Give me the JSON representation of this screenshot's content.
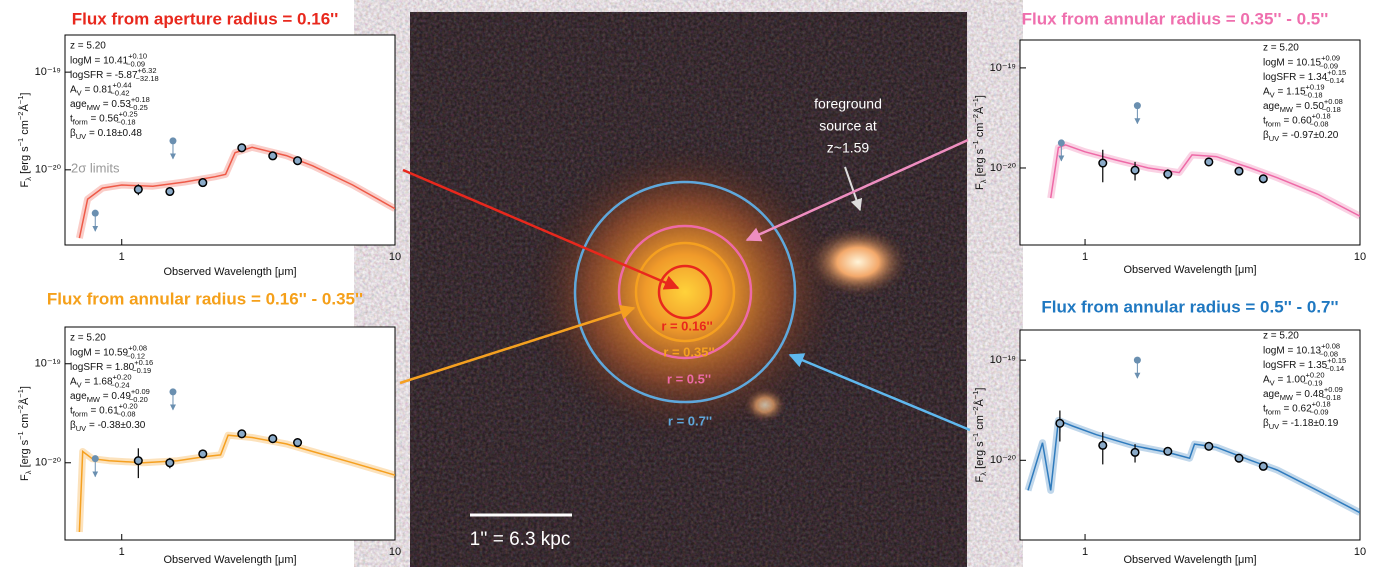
{
  "chart_data": [
    {
      "type": "line",
      "title": "Flux from aperture radius = 0.16''",
      "title_color": "#e8281d",
      "xlabel": "Observed Wavelength [μm]",
      "ylabel": [
        {
          "t": "F"
        },
        {
          "t": "λ",
          "pos": "sub"
        },
        {
          "t": " [erg s"
        },
        {
          "t": "−1",
          "pos": "sup"
        },
        {
          "t": " cm"
        },
        {
          "t": "−2",
          "pos": "sup"
        },
        {
          "t": "Å"
        },
        {
          "t": "−1",
          "pos": "sup"
        },
        {
          "t": "]"
        }
      ],
      "xscale": "log",
      "yscale": "log",
      "xlim": [
        0.62,
        10
      ],
      "ylim": [
        1.7e-21,
        2.4e-19
      ],
      "xticks": [
        1,
        10
      ],
      "yticks": [
        {
          "value": 1e-20,
          "label": "10⁻²⁰"
        },
        {
          "value": 1e-19,
          "label": "10⁻¹⁹"
        }
      ],
      "annotations": [
        "z = 5.20",
        [
          {
            "t": "logM = 10.41"
          },
          {
            "t": "+0.10",
            "pos": "sup"
          },
          {
            "t": "−0.09",
            "pos": "sub"
          }
        ],
        [
          {
            "t": "logSFR = -5.87"
          },
          {
            "t": "+6.32",
            "pos": "sup"
          },
          {
            "t": "−32.18",
            "pos": "sub"
          }
        ],
        [
          {
            "t": "A"
          },
          {
            "t": "V",
            "pos": "sub"
          },
          {
            "t": " = 0.81"
          },
          {
            "t": "+0.44",
            "pos": "sup"
          },
          {
            "t": "−0.42",
            "pos": "sub"
          }
        ],
        [
          {
            "t": "age"
          },
          {
            "t": "MW",
            "pos": "sub"
          },
          {
            "t": " = 0.53"
          },
          {
            "t": "+0.18",
            "pos": "sup"
          },
          {
            "t": "−0.25",
            "pos": "sub"
          }
        ],
        [
          {
            "t": "t"
          },
          {
            "t": "form",
            "pos": "sub"
          },
          {
            "t": " = 0.56"
          },
          {
            "t": "+0.25",
            "pos": "sup"
          },
          {
            "t": "−0.18",
            "pos": "sub"
          }
        ],
        [
          {
            "t": "β"
          },
          {
            "t": "UV",
            "pos": "sub"
          },
          {
            "t": " = 0.18±0.48"
          }
        ]
      ],
      "limit_label": "2σ limits",
      "model": {
        "color": "#ee5a48",
        "x": [
          0.7,
          0.75,
          0.85,
          1.0,
          1.3,
          1.7,
          2.2,
          2.4,
          2.6,
          3.0,
          4.0,
          5.0,
          7.0,
          10.0
        ],
        "values": [
          2e-21,
          5e-21,
          6.5e-21,
          7e-21,
          6.8e-21,
          7.5e-21,
          8.5e-21,
          9e-21,
          1.5e-20,
          1.7e-20,
          1.4e-20,
          1.1e-20,
          7e-21,
          4e-21
        ]
      },
      "points": {
        "x": [
          1.15,
          1.5,
          1.98,
          2.75,
          3.57,
          4.4
        ],
        "values": [
          6.3e-21,
          6e-21,
          7.4e-21,
          1.68e-20,
          1.39e-20,
          1.24e-20
        ],
        "errors": [
          8e-22,
          6e-22,
          7e-22,
          1.5e-21,
          1.1e-21,
          1.1e-21
        ]
      },
      "limits": {
        "x": [
          0.8,
          1.54
        ],
        "values": [
          3.6e-21,
          1.98e-20
        ],
        "color": "#6a8fb0"
      }
    },
    {
      "type": "line",
      "title": "Flux from annular radius = 0.16'' - 0.35''",
      "title_color": "#f5a01a",
      "xlabel": "Observed Wavelength [μm]",
      "ylabel": [
        {
          "t": "F"
        },
        {
          "t": "λ",
          "pos": "sub"
        },
        {
          "t": " [erg s"
        },
        {
          "t": "−1",
          "pos": "sup"
        },
        {
          "t": " cm"
        },
        {
          "t": "−2",
          "pos": "sup"
        },
        {
          "t": "Å"
        },
        {
          "t": "−1",
          "pos": "sup"
        },
        {
          "t": "]"
        }
      ],
      "xscale": "log",
      "yscale": "log",
      "xlim": [
        0.62,
        10
      ],
      "ylim": [
        1.66e-21,
        2.35e-19
      ],
      "xticks": [
        1,
        10
      ],
      "yticks": [
        {
          "value": 1e-20,
          "label": "10⁻²⁰"
        },
        {
          "value": 1e-19,
          "label": "10⁻¹⁹"
        }
      ],
      "annotations": [
        "z = 5.20",
        [
          {
            "t": "logM = 10.59"
          },
          {
            "t": "+0.08",
            "pos": "sup"
          },
          {
            "t": "−0.12",
            "pos": "sub"
          }
        ],
        [
          {
            "t": "logSFR = 1.80"
          },
          {
            "t": "+0.16",
            "pos": "sup"
          },
          {
            "t": "−0.19",
            "pos": "sub"
          }
        ],
        [
          {
            "t": "A"
          },
          {
            "t": "V",
            "pos": "sub"
          },
          {
            "t": " = 1.68"
          },
          {
            "t": "+0.20",
            "pos": "sup"
          },
          {
            "t": "−0.24",
            "pos": "sub"
          }
        ],
        [
          {
            "t": "age"
          },
          {
            "t": "MW",
            "pos": "sub"
          },
          {
            "t": " = 0.49"
          },
          {
            "t": "+0.09",
            "pos": "sup"
          },
          {
            "t": "−0.20",
            "pos": "sub"
          }
        ],
        [
          {
            "t": "t"
          },
          {
            "t": "form",
            "pos": "sub"
          },
          {
            "t": " = 0.61"
          },
          {
            "t": "+0.20",
            "pos": "sup"
          },
          {
            "t": "−0.08",
            "pos": "sub"
          }
        ],
        [
          {
            "t": "β"
          },
          {
            "t": "UV",
            "pos": "sub"
          },
          {
            "t": " = -0.38±0.30"
          }
        ]
      ],
      "model": {
        "color": "#f5a020",
        "x": [
          0.7,
          0.72,
          0.78,
          0.9,
          1.2,
          1.6,
          2.0,
          2.3,
          2.45,
          3.0,
          4.0,
          5.0,
          7.0,
          10.0
        ],
        "values": [
          2e-21,
          1.3e-20,
          1.1e-20,
          1.05e-20,
          1e-20,
          1.05e-20,
          1.15e-20,
          1.2e-20,
          1.9e-20,
          1.8e-20,
          1.55e-20,
          1.3e-20,
          1e-20,
          7.5e-21
        ]
      },
      "points": {
        "x": [
          1.15,
          1.5,
          1.98,
          2.75,
          3.57,
          4.4
        ],
        "values": [
          1.05e-20,
          1e-20,
          1.23e-20,
          1.96e-20,
          1.75e-20,
          1.6e-20
        ],
        "errors": [
          3.5e-21,
          1.2e-21,
          1e-21,
          1.6e-21,
          1.5e-21,
          1.4e-21
        ]
      },
      "limits": {
        "x": [
          0.8,
          1.54
        ],
        "values": [
          1.1e-20,
          5.2e-20
        ],
        "color": "#6a8fb0"
      }
    },
    {
      "type": "line",
      "title": "Flux from annular radius =  0.35'' - 0.5''",
      "title_color": "#ef6fae",
      "xlabel": "Observed Wavelength [μm]",
      "ylabel": [
        {
          "t": "F"
        },
        {
          "t": "λ",
          "pos": "sub"
        },
        {
          "t": " [erg s"
        },
        {
          "t": "−1",
          "pos": "sup"
        },
        {
          "t": " cm"
        },
        {
          "t": "−2",
          "pos": "sup"
        },
        {
          "t": "Å"
        },
        {
          "t": "−1",
          "pos": "sup"
        },
        {
          "t": "]"
        }
      ],
      "xscale": "log",
      "yscale": "log",
      "xlim": [
        0.58,
        10
      ],
      "ylim": [
        1.7e-21,
        1.9e-19
      ],
      "xticks": [
        1,
        10
      ],
      "yticks": [
        {
          "value": 1e-20,
          "label": "10⁻²⁰"
        },
        {
          "value": 1e-19,
          "label": "10⁻¹⁹"
        }
      ],
      "annotations": [
        "z = 5.20",
        [
          {
            "t": "logM = 10.15"
          },
          {
            "t": "+0.09",
            "pos": "sup"
          },
          {
            "t": "−0.09",
            "pos": "sub"
          }
        ],
        [
          {
            "t": "logSFR = 1.34"
          },
          {
            "t": "+0.15",
            "pos": "sup"
          },
          {
            "t": "−0.14",
            "pos": "sub"
          }
        ],
        [
          {
            "t": "A"
          },
          {
            "t": "V",
            "pos": "sub"
          },
          {
            "t": " = 1.15"
          },
          {
            "t": "+0.19",
            "pos": "sup"
          },
          {
            "t": "−0.18",
            "pos": "sub"
          }
        ],
        [
          {
            "t": "age"
          },
          {
            "t": "MW",
            "pos": "sub"
          },
          {
            "t": " = 0.50"
          },
          {
            "t": "+0.08",
            "pos": "sup"
          },
          {
            "t": "−0.18",
            "pos": "sub"
          }
        ],
        [
          {
            "t": "t"
          },
          {
            "t": "form",
            "pos": "sub"
          },
          {
            "t": " = 0.60"
          },
          {
            "t": "+0.18",
            "pos": "sup"
          },
          {
            "t": "−0.08",
            "pos": "sub"
          }
        ],
        [
          {
            "t": "β"
          },
          {
            "t": "UV",
            "pos": "sub"
          },
          {
            "t": " = -0.97±0.20"
          }
        ]
      ],
      "model": {
        "color": "#ee6aa7",
        "x": [
          0.75,
          0.8,
          0.85,
          1.0,
          1.3,
          1.7,
          2.2,
          2.45,
          3.0,
          4.0,
          5.0,
          7.0,
          10.0
        ],
        "values": [
          5e-21,
          1.6e-20,
          1.7e-20,
          1.45e-20,
          1.2e-20,
          1e-20,
          9e-21,
          1.35e-20,
          1.3e-20,
          1e-20,
          8e-21,
          5.5e-21,
          3.3e-21
        ]
      },
      "points": {
        "x": [
          1.16,
          1.52,
          2.0,
          2.82,
          3.63,
          4.45
        ],
        "values": [
          1.12e-20,
          9.5e-21,
          8.7e-21,
          1.15e-20,
          9.3e-21,
          7.8e-21
        ],
        "errors": [
          4e-21,
          2e-21,
          1e-21,
          1e-21,
          8e-22,
          7e-22
        ]
      },
      "limits": {
        "x": [
          0.82,
          1.55
        ],
        "values": [
          1.78e-20,
          4.2e-20
        ],
        "color": "#6a8fb0"
      }
    },
    {
      "type": "line",
      "title": "Flux from annular radius =  0.5'' - 0.7''",
      "title_color": "#1f78c1",
      "xlabel": "Observed Wavelength [μm]",
      "ylabel": [
        {
          "t": "F"
        },
        {
          "t": "λ",
          "pos": "sub"
        },
        {
          "t": " [erg s"
        },
        {
          "t": "−1",
          "pos": "sup"
        },
        {
          "t": " cm"
        },
        {
          "t": "−2",
          "pos": "sup"
        },
        {
          "t": "Å"
        },
        {
          "t": "−1",
          "pos": "sup"
        },
        {
          "t": "]"
        }
      ],
      "xscale": "log",
      "yscale": "log",
      "xlim": [
        0.58,
        10
      ],
      "ylim": [
        1.6e-21,
        2e-19
      ],
      "xticks": [
        1,
        10
      ],
      "yticks": [
        {
          "value": 1e-20,
          "label": "10⁻²⁰"
        },
        {
          "value": 1e-19,
          "label": "10⁻¹⁹"
        }
      ],
      "annotations": [
        "z = 5.20",
        [
          {
            "t": "logM = 10.13"
          },
          {
            "t": "+0.08",
            "pos": "sup"
          },
          {
            "t": "−0.08",
            "pos": "sub"
          }
        ],
        [
          {
            "t": "logSFR = 1.35"
          },
          {
            "t": "+0.15",
            "pos": "sup"
          },
          {
            "t": "−0.14",
            "pos": "sub"
          }
        ],
        [
          {
            "t": "A"
          },
          {
            "t": "V",
            "pos": "sub"
          },
          {
            "t": " = 1.00"
          },
          {
            "t": "+0.20",
            "pos": "sup"
          },
          {
            "t": "−0.19",
            "pos": "sub"
          }
        ],
        [
          {
            "t": "age"
          },
          {
            "t": "MW",
            "pos": "sub"
          },
          {
            "t": " = 0.48"
          },
          {
            "t": "+0.09",
            "pos": "sup"
          },
          {
            "t": "−0.18",
            "pos": "sub"
          }
        ],
        [
          {
            "t": "t"
          },
          {
            "t": "form",
            "pos": "sub"
          },
          {
            "t": " = 0.62"
          },
          {
            "t": "+0.18",
            "pos": "sup"
          },
          {
            "t": "−0.09",
            "pos": "sub"
          }
        ],
        [
          {
            "t": "β"
          },
          {
            "t": "UV",
            "pos": "sub"
          },
          {
            "t": " = -1.18±0.19"
          }
        ]
      ],
      "model": {
        "color": "#2f7bbd",
        "x": [
          0.62,
          0.7,
          0.75,
          0.8,
          0.9,
          1.1,
          1.5,
          2.0,
          2.4,
          2.5,
          3.0,
          4.0,
          5.0,
          7.0,
          10.0
        ],
        "values": [
          5e-21,
          1.5e-20,
          5e-21,
          2.5e-20,
          2.2e-20,
          1.8e-20,
          1.4e-20,
          1.2e-20,
          1.05e-20,
          1.45e-20,
          1.35e-20,
          1e-20,
          8e-21,
          5e-21,
          3e-21
        ]
      },
      "points": {
        "x": [
          0.81,
          1.16,
          1.52,
          2.0,
          2.82,
          3.63,
          4.45
        ],
        "values": [
          2.34e-20,
          1.41e-20,
          1.2e-20,
          1.23e-20,
          1.38e-20,
          1.05e-20,
          8.7e-21
        ],
        "errors": [
          8e-21,
          5e-21,
          2.5e-21,
          1e-21,
          1e-21,
          9e-22,
          7e-22
        ]
      },
      "limits": {
        "x": [
          1.55
        ],
        "values": [
          1e-19
        ],
        "color": "#6a8fb0"
      }
    }
  ],
  "image": {
    "radius_labels": [
      "r = 0.16''",
      "r = 0.35''",
      "r = 0.5''",
      "r = 0.7''"
    ],
    "scale_bar": "1'' = 6.3 kpc",
    "foreground_label": [
      "foreground",
      "source at",
      "z~1.59"
    ]
  }
}
